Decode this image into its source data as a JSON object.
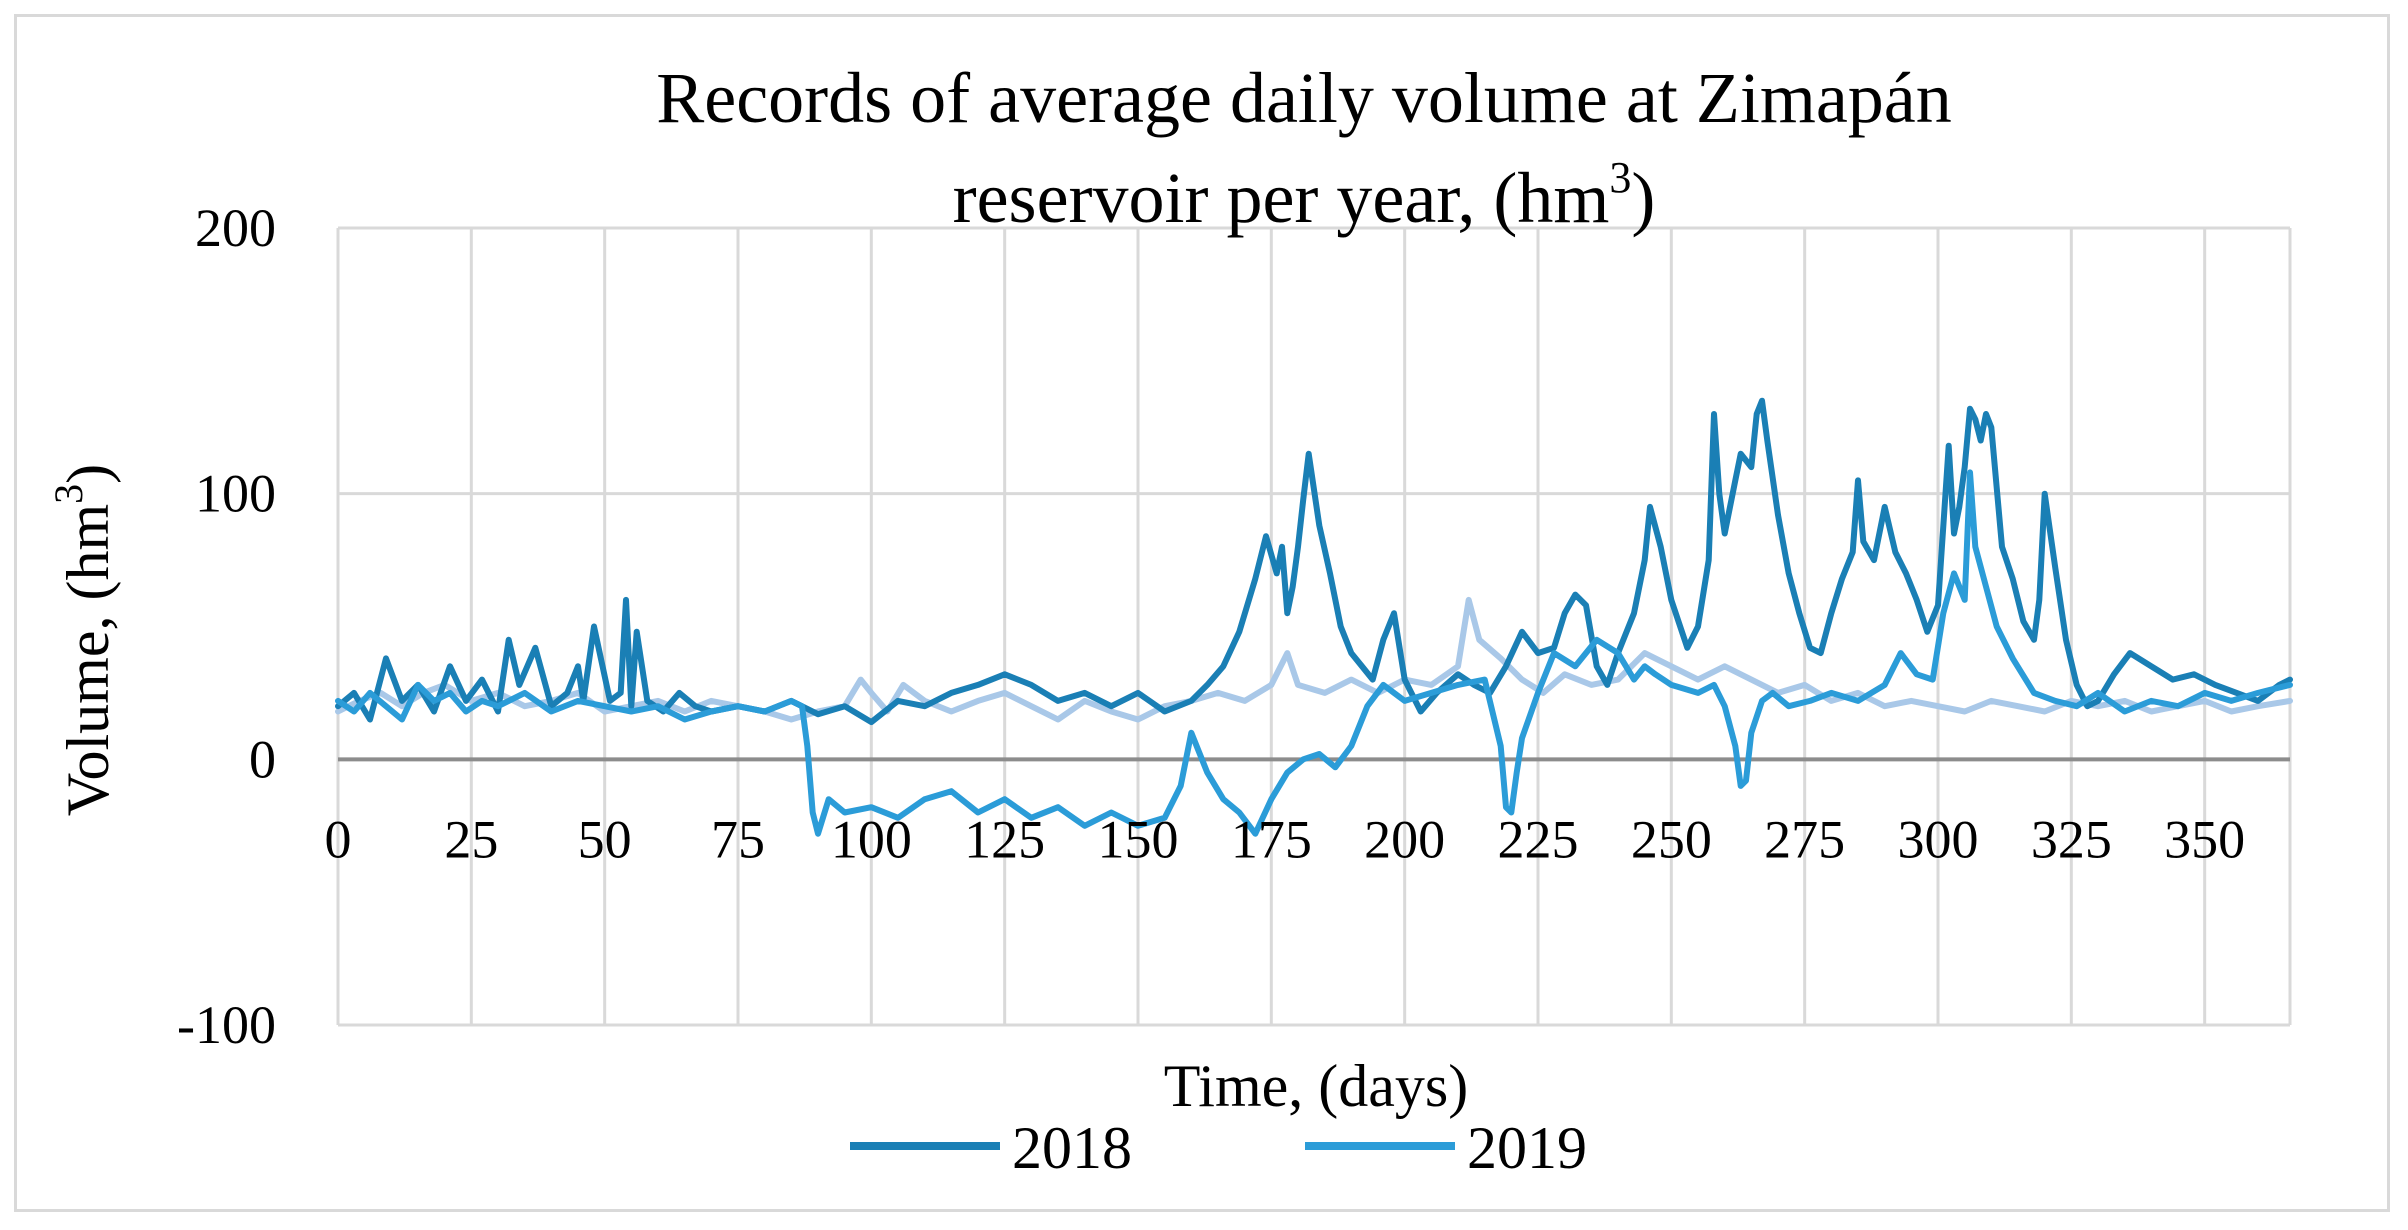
{
  "chart_data": {
    "type": "line",
    "title_line1": "Records of average daily volume at Zimapán",
    "title_line2": "reservoir per year, (hm",
    "title_sup": "3",
    "title_close": ")",
    "xlabel": "Time, (days)",
    "ylabel": "Volume, (hm",
    "ylabel_sup": "3",
    "ylabel_close": ")",
    "xlim": [
      0,
      366
    ],
    "ylim": [
      -100,
      200
    ],
    "x_ticks": [
      0,
      25,
      50,
      75,
      100,
      125,
      150,
      175,
      200,
      225,
      250,
      275,
      300,
      325,
      350
    ],
    "x_tick_labels": [
      "0",
      "25",
      "50",
      "75",
      "100",
      "125",
      "150",
      "175",
      "200",
      "225",
      "250",
      "275",
      "300",
      "325",
      "350"
    ],
    "y_ticks": [
      -100,
      0,
      100,
      200
    ],
    "y_tick_labels": [
      "-100",
      "0",
      "100",
      "200"
    ],
    "legend_position": "bottom",
    "series": [
      {
        "name": "2018",
        "color": "#1a7fb5",
        "x": [
          0,
          3,
          6,
          9,
          12,
          15,
          18,
          21,
          24,
          27,
          30,
          32,
          34,
          37,
          40,
          43,
          45,
          46,
          48,
          51,
          53,
          54,
          55,
          56,
          58,
          61,
          64,
          67,
          70,
          75,
          80,
          85,
          90,
          95,
          100,
          105,
          110,
          115,
          120,
          125,
          130,
          135,
          140,
          145,
          150,
          155,
          160,
          163,
          166,
          169,
          172,
          174,
          176,
          177,
          178,
          179,
          180,
          181,
          182,
          184,
          186,
          188,
          190,
          192,
          194,
          196,
          198,
          200,
          203,
          206,
          210,
          213,
          216,
          219,
          222,
          225,
          228,
          230,
          232,
          234,
          236,
          238,
          240,
          243,
          245,
          246,
          248,
          250,
          253,
          255,
          257,
          258,
          259,
          260,
          262,
          263,
          265,
          266,
          267,
          268,
          270,
          272,
          274,
          276,
          278,
          280,
          282,
          284,
          285,
          286,
          288,
          290,
          292,
          294,
          296,
          298,
          300,
          302,
          303,
          304,
          305,
          306,
          307,
          308,
          309,
          310,
          312,
          314,
          316,
          318,
          319,
          320,
          322,
          324,
          326,
          328,
          330,
          333,
          336,
          340,
          344,
          348,
          352,
          356,
          360,
          364,
          366
        ],
        "values": [
          20,
          25,
          15,
          38,
          22,
          28,
          18,
          35,
          22,
          30,
          18,
          45,
          28,
          42,
          20,
          25,
          35,
          22,
          50,
          22,
          25,
          60,
          20,
          48,
          22,
          18,
          25,
          20,
          18,
          20,
          18,
          22,
          17,
          20,
          14,
          22,
          20,
          25,
          28,
          32,
          28,
          22,
          25,
          20,
          25,
          18,
          22,
          28,
          35,
          48,
          68,
          84,
          70,
          80,
          55,
          65,
          80,
          98,
          115,
          88,
          70,
          50,
          40,
          35,
          30,
          45,
          55,
          30,
          18,
          25,
          32,
          28,
          25,
          35,
          48,
          40,
          42,
          55,
          62,
          58,
          35,
          28,
          40,
          55,
          75,
          95,
          80,
          60,
          42,
          50,
          75,
          130,
          100,
          85,
          105,
          115,
          110,
          130,
          135,
          120,
          92,
          70,
          55,
          42,
          40,
          55,
          68,
          78,
          105,
          82,
          75,
          95,
          78,
          70,
          60,
          48,
          58,
          118,
          85,
          95,
          110,
          132,
          128,
          120,
          130,
          125,
          80,
          68,
          52,
          45,
          60,
          100,
          72,
          45,
          28,
          20,
          22,
          32,
          40,
          35,
          30,
          32,
          28,
          25,
          22,
          28,
          30
        ]
      },
      {
        "name": "2019",
        "color": "#2b9cd8",
        "x": [
          0,
          3,
          6,
          9,
          12,
          15,
          18,
          21,
          24,
          27,
          30,
          35,
          40,
          45,
          50,
          55,
          60,
          65,
          70,
          75,
          80,
          85,
          87,
          88,
          89,
          90,
          92,
          95,
          100,
          105,
          110,
          115,
          120,
          125,
          130,
          135,
          140,
          145,
          150,
          155,
          158,
          160,
          163,
          166,
          169,
          172,
          175,
          178,
          181,
          184,
          187,
          190,
          193,
          196,
          200,
          205,
          210,
          215,
          218,
          219,
          220,
          221,
          222,
          225,
          228,
          232,
          236,
          240,
          243,
          245,
          247,
          250,
          255,
          258,
          260,
          262,
          263,
          264,
          265,
          267,
          269,
          272,
          276,
          280,
          285,
          290,
          293,
          296,
          299,
          301,
          303,
          305,
          306,
          307,
          309,
          311,
          314,
          318,
          322,
          326,
          330,
          335,
          340,
          345,
          350,
          355,
          360,
          366
        ],
        "values": [
          22,
          18,
          25,
          20,
          15,
          28,
          22,
          25,
          18,
          22,
          20,
          25,
          18,
          22,
          20,
          18,
          20,
          15,
          18,
          20,
          18,
          22,
          20,
          5,
          -20,
          -28,
          -15,
          -20,
          -18,
          -22,
          -15,
          -12,
          -20,
          -15,
          -22,
          -18,
          -25,
          -20,
          -25,
          -22,
          -10,
          10,
          -5,
          -15,
          -20,
          -28,
          -15,
          -5,
          0,
          2,
          -3,
          5,
          20,
          28,
          22,
          25,
          28,
          30,
          5,
          -18,
          -20,
          -5,
          8,
          25,
          40,
          35,
          45,
          40,
          30,
          35,
          32,
          28,
          25,
          28,
          20,
          5,
          -10,
          -8,
          10,
          22,
          25,
          20,
          22,
          25,
          22,
          28,
          40,
          32,
          30,
          55,
          70,
          60,
          108,
          80,
          65,
          50,
          38,
          25,
          22,
          20,
          25,
          18,
          22,
          20,
          25,
          22,
          25,
          28
        ]
      },
      {
        "name": "",
        "color": "#a9c8e8",
        "x": [
          0,
          4,
          8,
          12,
          16,
          20,
          25,
          30,
          35,
          40,
          45,
          50,
          55,
          60,
          65,
          70,
          75,
          80,
          85,
          90,
          95,
          98,
          100,
          103,
          106,
          110,
          115,
          120,
          125,
          130,
          135,
          140,
          145,
          150,
          155,
          160,
          165,
          170,
          175,
          178,
          180,
          185,
          190,
          195,
          200,
          205,
          210,
          212,
          214,
          218,
          222,
          226,
          230,
          235,
          240,
          245,
          250,
          255,
          260,
          265,
          270,
          275,
          280,
          285,
          290,
          295,
          300,
          305,
          310,
          315,
          320,
          325,
          330,
          335,
          340,
          345,
          350,
          355,
          360,
          366
        ],
        "values": [
          18,
          22,
          25,
          20,
          25,
          28,
          22,
          25,
          20,
          22,
          25,
          18,
          20,
          22,
          18,
          22,
          20,
          18,
          15,
          18,
          20,
          30,
          25,
          18,
          28,
          22,
          18,
          22,
          25,
          20,
          15,
          22,
          18,
          15,
          20,
          22,
          25,
          22,
          28,
          40,
          28,
          25,
          30,
          25,
          30,
          28,
          35,
          60,
          45,
          38,
          30,
          25,
          32,
          28,
          30,
          40,
          35,
          30,
          35,
          30,
          25,
          28,
          22,
          25,
          20,
          22,
          20,
          18,
          22,
          20,
          18,
          22,
          20,
          22,
          18,
          20,
          22,
          18,
          20,
          22
        ]
      }
    ]
  }
}
